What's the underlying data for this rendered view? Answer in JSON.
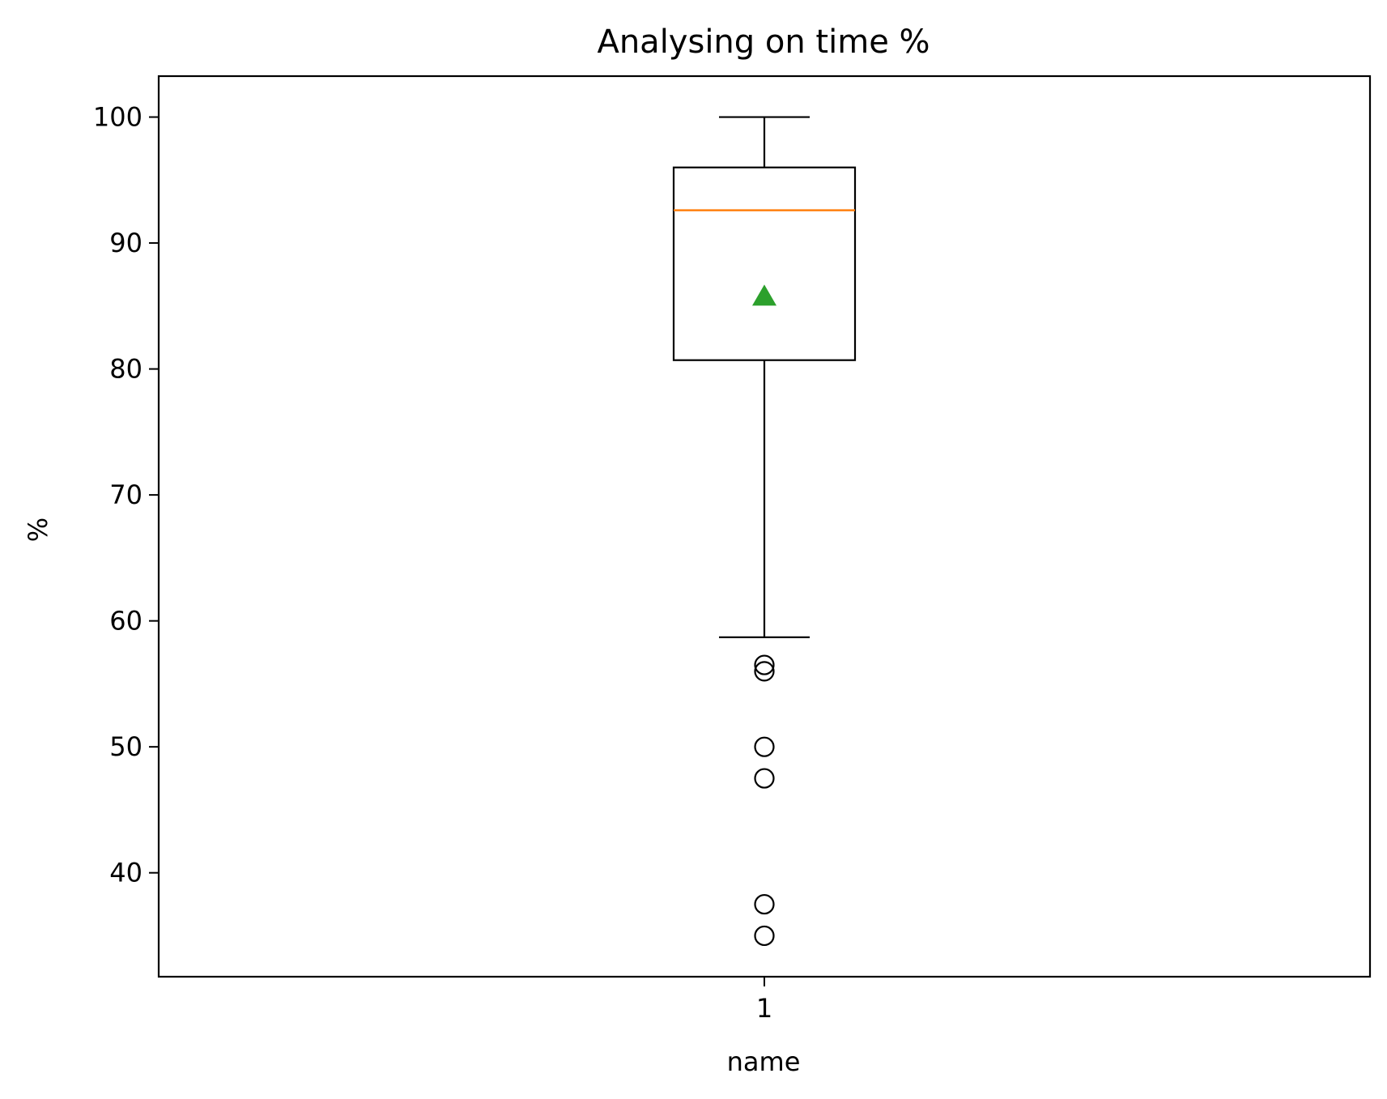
{
  "chart_data": {
    "type": "box",
    "title": "Analysing on time %",
    "xlabel": "name",
    "ylabel": "%",
    "categories": [
      "1"
    ],
    "ylim": [
      31.75,
      103.25
    ],
    "yticks": [
      40,
      50,
      60,
      70,
      80,
      90,
      100
    ],
    "grid": false,
    "boxes": [
      {
        "category": "1",
        "whisker_low": 58.7,
        "q1": 80.7,
        "median": 92.6,
        "q3": 96.0,
        "whisker_high": 100,
        "mean": 85.8,
        "outliers": [
          56.5,
          56.0,
          50.0,
          47.5,
          37.5,
          35.0
        ]
      }
    ],
    "colors": {
      "box": "#000000",
      "median": "#ff7f0e",
      "mean": "#2ca02c",
      "outlier_edge": "#000000"
    }
  }
}
